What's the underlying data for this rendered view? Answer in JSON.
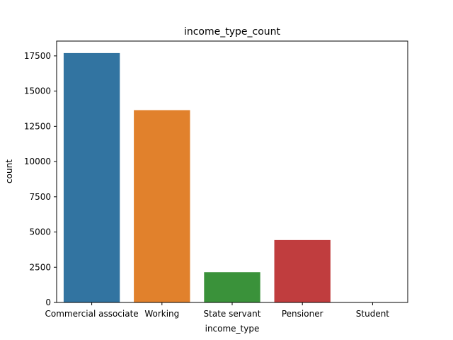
{
  "chart_data": {
    "type": "bar",
    "title": "income_type_count",
    "xlabel": "income_type",
    "ylabel": "count",
    "categories": [
      "Commercial associate",
      "Working",
      "State servant",
      "Pensioner",
      "Student"
    ],
    "values": [
      17700,
      13650,
      2150,
      4430,
      10
    ],
    "colors": [
      "#3274a1",
      "#e1812c",
      "#3a923a",
      "#c03d3e",
      "#9372b2"
    ],
    "ylim": [
      0,
      18550
    ],
    "yticks": [
      0,
      2500,
      5000,
      7500,
      10000,
      12500,
      15000,
      17500
    ],
    "ytick_labels": [
      "0",
      "2500",
      "5000",
      "7500",
      "10000",
      "12500",
      "15000",
      "17500"
    ],
    "grid": false,
    "legend": "none"
  }
}
